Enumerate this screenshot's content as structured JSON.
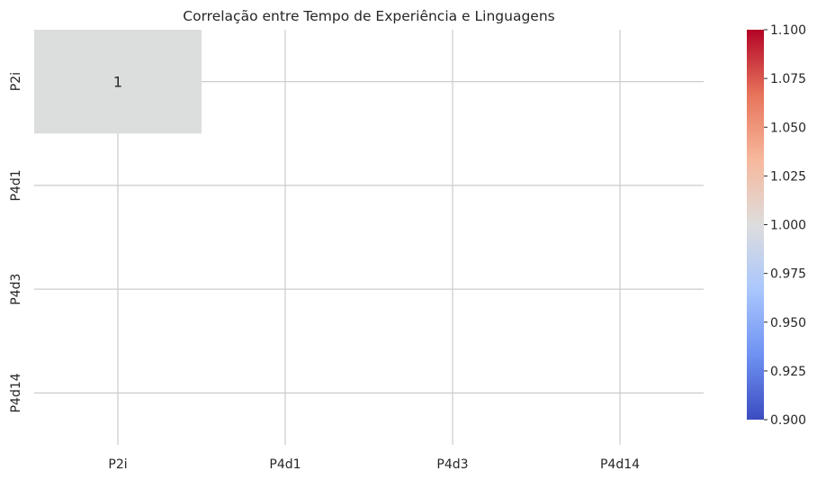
{
  "chart_data": {
    "type": "heatmap",
    "title": "Correlação entre Tempo de Experiência e Linguagens",
    "x_labels": [
      "P2i",
      "P4d1",
      "P4d3",
      "P4d14"
    ],
    "y_labels": [
      "P2i",
      "P4d1",
      "P4d3",
      "P4d14"
    ],
    "matrix": [
      [
        1,
        null,
        null,
        null
      ],
      [
        null,
        null,
        null,
        null
      ],
      [
        null,
        null,
        null,
        null
      ],
      [
        null,
        null,
        null,
        null
      ]
    ],
    "annotations": [
      {
        "row": 0,
        "col": 0,
        "text": "1"
      }
    ],
    "colormap": "coolwarm",
    "colorbar": {
      "min": 0.9,
      "max": 1.1,
      "ticks": [
        "0.900",
        "0.925",
        "0.950",
        "0.975",
        "1.000",
        "1.025",
        "1.050",
        "1.075",
        "1.100"
      ],
      "colors": [
        "#3b4cc0",
        "#6f92f3",
        "#aac7fd",
        "#dddddd",
        "#f7b89c",
        "#e7745b",
        "#b40426"
      ]
    },
    "grid": true,
    "grid_color": "#cccccc",
    "cell_color_at_value_1": "#dcdddd"
  }
}
